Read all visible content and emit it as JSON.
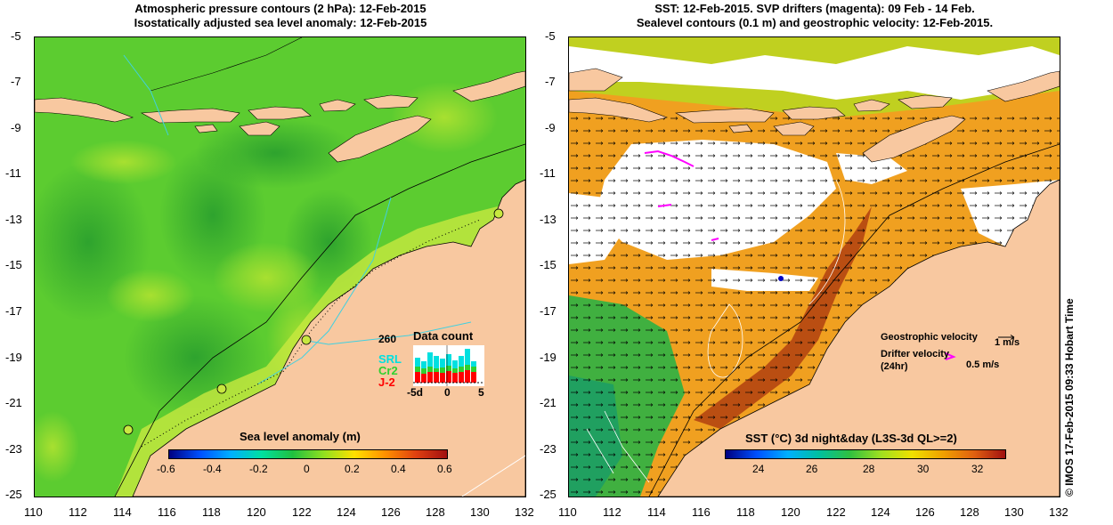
{
  "left_panel": {
    "title_line1": "Atmospheric pressure contours (2 hPa): 12-Feb-2015",
    "title_line2": "Isostatically adjusted sea level anomaly: 12-Feb-2015",
    "colorbar_label": "Sea level anomaly (m)",
    "colorbar_ticks": [
      "-0.6",
      "-0.4",
      "-0.2",
      "0",
      "0.2",
      "0.4",
      "0.6"
    ],
    "data_count": {
      "title": "Data count",
      "max_label": "260",
      "series": [
        {
          "name": "SRL",
          "color": "#00e0e0"
        },
        {
          "name": "Cr2",
          "color": "#30d030"
        },
        {
          "name": "J-2",
          "color": "#ff0000"
        }
      ],
      "x_ticks": [
        "-5d",
        "0",
        "5"
      ]
    }
  },
  "right_panel": {
    "title_line1": "SST: 12-Feb-2015. SVP drifters (magenta): 09 Feb - 14 Feb.",
    "title_line2": "Sealevel contours (0.1 m) and geostrophic velocity: 12-Feb-2015.",
    "colorbar_label": "SST (°C) 3d night&day (L3S-3d QL>=2)",
    "colorbar_ticks": [
      "24",
      "26",
      "28",
      "30",
      "32"
    ],
    "legend": {
      "geostrophic_label": "Geostrophic velocity",
      "geostrophic_scale": "1 m/s",
      "drifter_label": "Drifter velocity",
      "drifter_sublabel": "(24hr)",
      "drifter_scale": "0.5 m/s"
    }
  },
  "axes": {
    "y_ticks": [
      "-5",
      "-7",
      "-9",
      "-11",
      "-13",
      "-15",
      "-17",
      "-19",
      "-21",
      "-23",
      "-25"
    ],
    "x_ticks": [
      "110",
      "112",
      "114",
      "116",
      "118",
      "120",
      "122",
      "124",
      "126",
      "128",
      "130",
      "132"
    ]
  },
  "credit": "© IMOS 17-Feb-2015 09:33 Hobart Time",
  "colors": {
    "land": "#f8c8a0",
    "sea_anomaly": "#60d030",
    "sst_warm": "#f0a020",
    "sst_hot": "#b04010",
    "cloud": "#ffffff"
  }
}
